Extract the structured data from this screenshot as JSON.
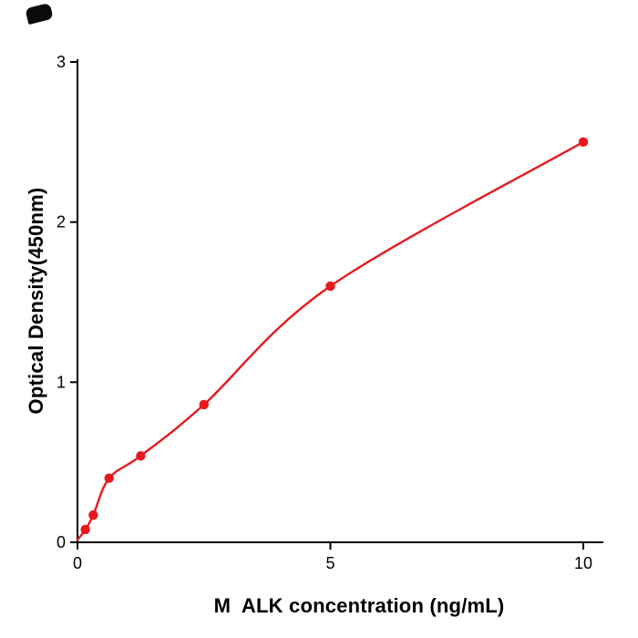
{
  "figure": {
    "background": "#ffffff",
    "corner_mark": "small-black-decorative-mark"
  },
  "chart_data": {
    "type": "scatter",
    "title": "",
    "xlabel": "M  ALK concentration (ng/mL)",
    "ylabel": "Optical Density(450nm)",
    "x": [
      0.156,
      0.3125,
      0.625,
      1.25,
      2.5,
      5,
      10
    ],
    "y": [
      0.08,
      0.17,
      0.4,
      0.54,
      0.86,
      1.6,
      2.5
    ],
    "fit_curve": "smooth saturating curve through points starting at origin",
    "xlim": [
      0,
      10.4
    ],
    "ylim": [
      0,
      3.03
    ],
    "xticks": [
      0,
      5,
      10
    ],
    "yticks": [
      0,
      1,
      2,
      3
    ],
    "grid": false,
    "legend": null,
    "point_color": "#e8191c",
    "line_color": "#e8191c",
    "axis_color": "#000000",
    "tick_font_size": 18
  }
}
